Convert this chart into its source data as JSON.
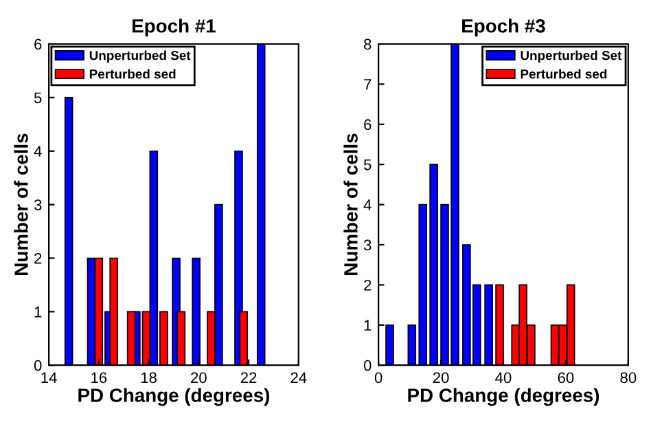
{
  "chart_data": [
    {
      "type": "bar",
      "title": "Epoch #1",
      "xlabel": "PD Change (degrees)",
      "ylabel": "Number of cells",
      "xlim": [
        14,
        24
      ],
      "xticks": [
        14,
        16,
        18,
        20,
        22,
        24
      ],
      "ylim": [
        0,
        6
      ],
      "yticks": [
        0,
        1,
        2,
        3,
        4,
        5,
        6
      ],
      "legend": "top left",
      "grid": false,
      "series": [
        {
          "name": "Unperturbed Set",
          "color": "#0000ff",
          "x": [
            14.8,
            15.7,
            16.4,
            17.5,
            18.2,
            19.1,
            19.9,
            20.8,
            21.6,
            22.5
          ],
          "values": [
            5,
            2,
            1,
            1,
            4,
            2,
            2,
            3,
            4,
            6
          ]
        },
        {
          "name": "Perturbed sed",
          "color": "#ff0000",
          "x": [
            16.0,
            16.6,
            17.3,
            17.9,
            18.6,
            19.3,
            20.5,
            21.8
          ],
          "values": [
            2,
            2,
            1,
            1,
            1,
            1,
            1,
            1
          ]
        }
      ]
    },
    {
      "type": "bar",
      "title": "Epoch #3",
      "xlabel": "PD Change (degrees)",
      "ylabel": "Number of cells",
      "xlim": [
        0,
        80
      ],
      "xticks": [
        0,
        20,
        40,
        60,
        80
      ],
      "ylim": [
        0,
        8
      ],
      "yticks": [
        0,
        1,
        2,
        3,
        4,
        5,
        6,
        7,
        8
      ],
      "legend": "top right",
      "grid": false,
      "series": [
        {
          "name": "Unperturbed Set",
          "color": "#0000ff",
          "x": [
            3.6,
            10.7,
            14.2,
            17.7,
            21.2,
            24.5,
            28.2,
            31.5,
            35.3
          ],
          "values": [
            1,
            1,
            4,
            5,
            4,
            8,
            3,
            2,
            2
          ]
        },
        {
          "name": "Perturbed sed",
          "color": "#ff0000",
          "x": [
            38.8,
            43.9,
            46.3,
            48.9,
            56.5,
            59.0,
            61.6
          ],
          "values": [
            2,
            1,
            2,
            1,
            1,
            1,
            2
          ]
        }
      ]
    }
  ]
}
